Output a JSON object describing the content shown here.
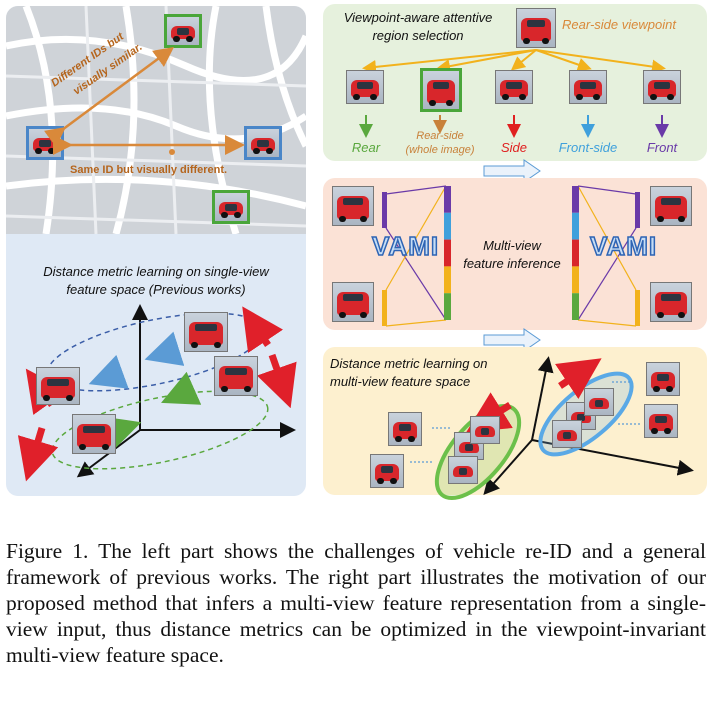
{
  "left": {
    "map_label_different": [
      "Different IDs but",
      "visually similar."
    ],
    "map_label_same": "Same ID but visually different.",
    "title_line1": "Distance metric learning on single-view",
    "title_line2": "feature space (Previous works)"
  },
  "right_top": {
    "title_line1": "Viewpoint-aware attentive",
    "title_line2": "region selection",
    "viewpoint_label": "Rear-side viewpoint",
    "regions": [
      {
        "label": "Rear",
        "color": "#5aa83e"
      },
      {
        "label": "Rear-side",
        "sublabel": "(whole image)",
        "color": "#c8813a"
      },
      {
        "label": "Side",
        "color": "#e02020"
      },
      {
        "label": "Front-side",
        "color": "#3fa0dc"
      },
      {
        "label": "Front",
        "color": "#6a3aa8"
      }
    ]
  },
  "right_mid": {
    "vami_left": "VAMI",
    "vami_right": "VAMI",
    "center_line1": "Multi-view",
    "center_line2": "feature inference",
    "bar_colors": [
      "#6a3aa8",
      "#3fa0dc",
      "#d8262b",
      "#f2b21c",
      "#5aa83e"
    ]
  },
  "right_bottom": {
    "title_line1": "Distance metric learning  on",
    "title_line2": "multi-view feature space"
  },
  "caption": "Figure 1. The left part shows the challenges of vehicle re-ID and a general framework of previous works. The right part illustrates the motivation of our proposed method that infers a multi-view feature representation from a single-view input, thus distance metrics can be optimized in the viewpoint-invariant multi-view feature space."
}
